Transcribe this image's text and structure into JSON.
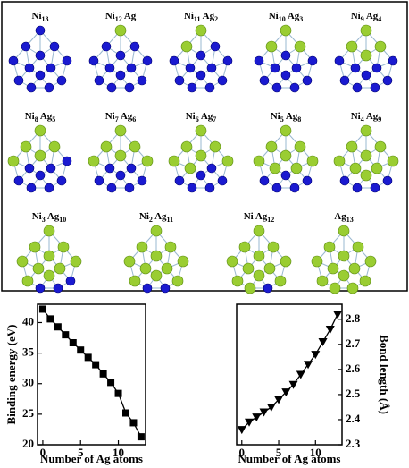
{
  "clusters": [
    {
      "label": [
        {
          "text": "Ni",
          "sub": "13"
        }
      ]
    },
    {
      "label": [
        {
          "text": "Ni",
          "sub": "12"
        },
        {
          "text": "Ag"
        }
      ]
    },
    {
      "label": [
        {
          "text": "Ni",
          "sub": "11"
        },
        {
          "text": "Ag",
          "sub": "2"
        }
      ]
    },
    {
      "label": [
        {
          "text": "Ni",
          "sub": "10"
        },
        {
          "text": "Ag",
          "sub": "3"
        }
      ]
    },
    {
      "label": [
        {
          "text": "Ni",
          "sub": "9"
        },
        {
          "text": "Ag",
          "sub": "4"
        }
      ]
    },
    {
      "label": [
        {
          "text": "Ni",
          "sub": "8"
        },
        {
          "text": "Ag",
          "sub": "5"
        }
      ]
    },
    {
      "label": [
        {
          "text": "Ni",
          "sub": "7"
        },
        {
          "text": "Ag",
          "sub": "6"
        }
      ]
    },
    {
      "label": [
        {
          "text": "Ni",
          "sub": "6"
        },
        {
          "text": "Ag",
          "sub": "7"
        }
      ]
    },
    {
      "label": [
        {
          "text": "Ni",
          "sub": "5"
        },
        {
          "text": "Ag",
          "sub": "8"
        }
      ]
    },
    {
      "label": [
        {
          "text": "Ni",
          "sub": "4"
        },
        {
          "text": "Ag",
          "sub": "9"
        }
      ]
    },
    {
      "label": [
        {
          "text": "Ni",
          "sub": "3"
        },
        {
          "text": "Ag",
          "sub": "10"
        }
      ]
    },
    {
      "label": [
        {
          "text": "Ni",
          "sub": "2"
        },
        {
          "text": "Ag",
          "sub": "11"
        }
      ]
    },
    {
      "label": [
        {
          "text": "Ni"
        },
        {
          "text": "Ag",
          "sub": "12"
        }
      ]
    },
    {
      "label": [
        {
          "text": "Ag",
          "sub": "13"
        }
      ]
    }
  ],
  "chart_data": [
    {
      "type": "line",
      "x_label": "Number of Ag atoms",
      "y_label": "Binding energy (eV)",
      "x": [
        0,
        1,
        2,
        3,
        4,
        5,
        6,
        7,
        8,
        9,
        10,
        11,
        12,
        13
      ],
      "values": [
        42.2,
        40.6,
        39.3,
        38.0,
        36.7,
        35.5,
        34.3,
        33.1,
        31.6,
        30.2,
        28.4,
        25.2,
        23.6,
        21.3
      ],
      "marker": "square",
      "color": "#000000",
      "y_axis_side": "left",
      "xlim": [
        -0.7,
        13.6
      ],
      "xticks": [
        0,
        5,
        10
      ],
      "ylim": [
        20,
        43
      ],
      "yticks": [
        20,
        25,
        30,
        35,
        40
      ]
    },
    {
      "type": "line",
      "x_label": "Number of Ag atoms",
      "y_label": "Bond length (Å)",
      "x": [
        0,
        1,
        2,
        3,
        4,
        5,
        6,
        7,
        8,
        9,
        10,
        11,
        12,
        13
      ],
      "values": [
        2.36,
        2.39,
        2.41,
        2.43,
        2.45,
        2.48,
        2.51,
        2.54,
        2.58,
        2.62,
        2.66,
        2.71,
        2.76,
        2.82
      ],
      "marker": "triangle_down",
      "color": "#000000",
      "y_axis_side": "right",
      "xlim": [
        -0.7,
        13.6
      ],
      "xticks": [
        0,
        5,
        10
      ],
      "ylim": [
        2.3,
        2.86
      ],
      "yticks": [
        2.3,
        2.4,
        2.5,
        2.6,
        2.7,
        2.8
      ]
    }
  ]
}
